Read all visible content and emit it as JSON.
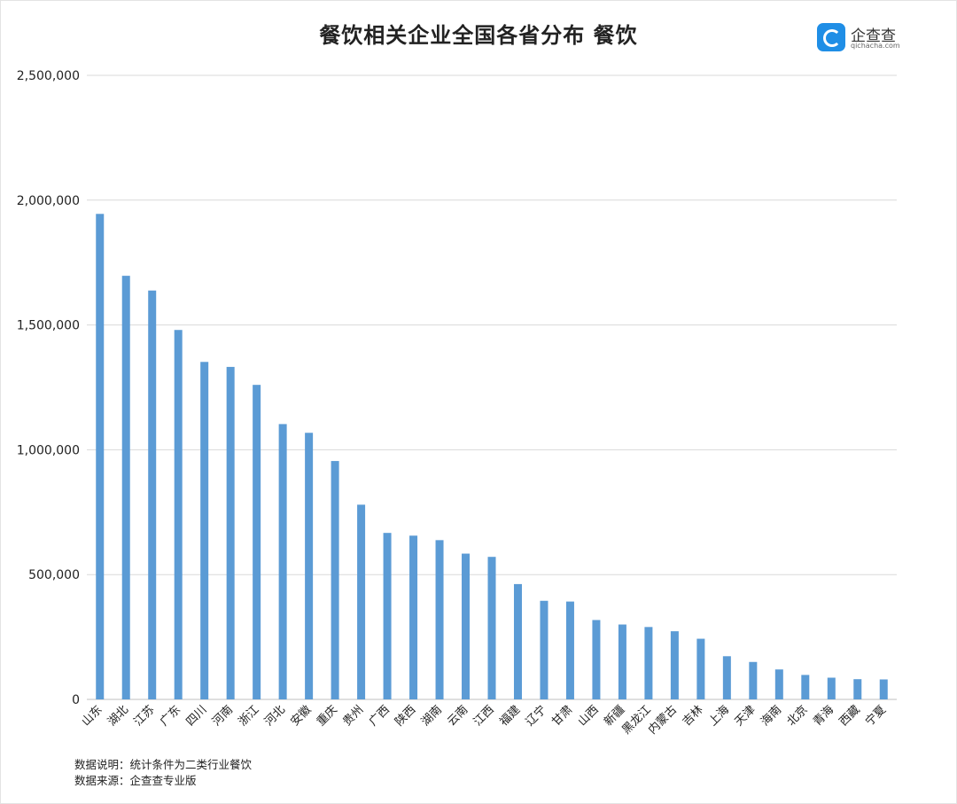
{
  "title": "餐饮相关企业全国各省分布 餐饮",
  "logo": {
    "name": "企查查",
    "domain": "qichacha.com"
  },
  "notes": {
    "line1": "数据说明：统计条件为二类行业餐饮",
    "line2": "数据来源：企查查专业版"
  },
  "colors": {
    "bar": "#5b9bd5",
    "grid": "#d9d9d9"
  },
  "chart_data": {
    "type": "bar",
    "categories": [
      "山东",
      "湖北",
      "江苏",
      "广东",
      "四川",
      "河南",
      "浙江",
      "河北",
      "安徽",
      "重庆",
      "贵州",
      "广西",
      "陕西",
      "湖南",
      "云南",
      "江西",
      "福建",
      "辽宁",
      "甘肃",
      "山西",
      "新疆",
      "黑龙江",
      "内蒙古",
      "吉林",
      "上海",
      "天津",
      "海南",
      "北京",
      "青海",
      "西藏",
      "宁夏"
    ],
    "values": [
      1945000,
      1697000,
      1638000,
      1480000,
      1352000,
      1332000,
      1260000,
      1103000,
      1068000,
      955000,
      780000,
      667000,
      656000,
      638000,
      584000,
      571000,
      462000,
      395000,
      392000,
      318000,
      300000,
      290000,
      273000,
      243000,
      173000,
      150000,
      120000,
      98000,
      87000,
      81000,
      80000
    ],
    "yticks": [
      "0",
      "500,000",
      "1,000,000",
      "1,500,000",
      "2,000,000",
      "2,500,000"
    ],
    "ylim": [
      0,
      2500000
    ],
    "grid": true
  }
}
